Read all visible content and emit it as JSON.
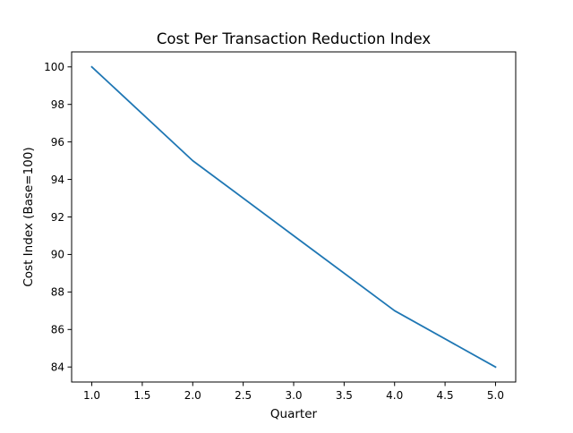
{
  "chart_data": {
    "type": "line",
    "title": "Cost Per Transaction Reduction Index",
    "xlabel": "Quarter",
    "ylabel": "Cost Index (Base=100)",
    "xlim": [
      0.8,
      5.2
    ],
    "ylim": [
      83.2,
      100.8
    ],
    "xticks": [
      1.0,
      1.5,
      2.0,
      2.5,
      3.0,
      3.5,
      4.0,
      4.5,
      5.0
    ],
    "xtick_labels": [
      "1.0",
      "1.5",
      "2.0",
      "2.5",
      "3.0",
      "3.5",
      "4.0",
      "4.5",
      "5.0"
    ],
    "yticks": [
      84,
      86,
      88,
      90,
      92,
      94,
      96,
      98,
      100
    ],
    "ytick_labels": [
      "84",
      "86",
      "88",
      "90",
      "92",
      "94",
      "96",
      "98",
      "100"
    ],
    "grid": false,
    "legend": "none",
    "series": [
      {
        "color": "#1f77b4",
        "x": [
          1,
          2,
          3,
          4,
          5
        ],
        "y": [
          100,
          95,
          91,
          87,
          84
        ]
      }
    ]
  }
}
